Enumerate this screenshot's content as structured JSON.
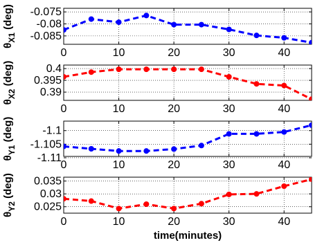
{
  "chart_data": [
    {
      "type": "line",
      "ylabel_symbol": "θ",
      "ylabel_sub": "X1",
      "ylabel_unit": "(deg)",
      "xlabel": "",
      "x": [
        0,
        5,
        10,
        15,
        20,
        25,
        30,
        35,
        40,
        45
      ],
      "values": [
        -0.0825,
        -0.078,
        -0.0793,
        -0.0765,
        -0.0803,
        -0.0803,
        -0.0823,
        -0.0848,
        -0.0858,
        -0.0878
      ],
      "ylim": [
        -0.0885,
        -0.0735
      ],
      "yticks": [
        -0.075,
        -0.08,
        -0.085
      ],
      "ytick_labels": [
        "-0.075",
        "-0.08",
        "-0.085"
      ],
      "xlim": [
        0,
        45
      ],
      "xticks": [
        0,
        10,
        20,
        30,
        40
      ],
      "xtick_labels": [
        "0",
        "10",
        "20",
        "30",
        "40"
      ],
      "color": "#0000ff",
      "grid": true
    },
    {
      "type": "line",
      "ylabel_symbol": "θ",
      "ylabel_sub": "X2",
      "ylabel_unit": "(deg)",
      "xlabel": "",
      "x": [
        0,
        5,
        10,
        15,
        20,
        25,
        30,
        35,
        40,
        45
      ],
      "values": [
        0.3965,
        0.3985,
        0.3997,
        0.3997,
        0.3997,
        0.3997,
        0.3965,
        0.3935,
        0.3928,
        0.387
      ],
      "ylim": [
        0.3865,
        0.4015
      ],
      "yticks": [
        0.39,
        0.395,
        0.4
      ],
      "ytick_labels": [
        "0.39",
        "0.395",
        "0.4"
      ],
      "xlim": [
        0,
        45
      ],
      "xticks": [
        0,
        10,
        20,
        30,
        40
      ],
      "xtick_labels": [
        "0",
        "10",
        "20",
        "30",
        "40"
      ],
      "color": "#ff0000",
      "grid": true
    },
    {
      "type": "line",
      "ylabel_symbol": "θ",
      "ylabel_sub": "Y1",
      "ylabel_unit": "(deg)",
      "xlabel": "",
      "x": [
        0,
        5,
        10,
        15,
        20,
        25,
        30,
        35,
        40,
        45
      ],
      "values": [
        -1.1058,
        -1.1067,
        -1.1075,
        -1.1075,
        -1.1068,
        -1.1055,
        -1.1012,
        -1.1012,
        -1.1005,
        -1.098
      ],
      "ylim": [
        -1.1095,
        -1.0965
      ],
      "yticks": [
        -1.1,
        -1.105,
        -1.11
      ],
      "ytick_labels": [
        "-1.1",
        "-1.105",
        "-1.11"
      ],
      "xlim": [
        0,
        45
      ],
      "xticks": [
        0,
        10,
        20,
        30,
        40
      ],
      "xtick_labels": [
        "0",
        "10",
        "20",
        "30",
        "40"
      ],
      "color": "#0000ff",
      "grid": true
    },
    {
      "type": "line",
      "ylabel_symbol": "θ",
      "ylabel_sub": "Y2",
      "ylabel_unit": "(deg)",
      "xlabel": "time(minutes)",
      "x": [
        0,
        5,
        10,
        15,
        20,
        25,
        30,
        35,
        40,
        45
      ],
      "values": [
        0.0281,
        0.0272,
        0.0243,
        0.026,
        0.0243,
        0.0262,
        0.0298,
        0.03,
        0.033,
        0.0357
      ],
      "ylim": [
        0.0225,
        0.0365
      ],
      "yticks": [
        0.025,
        0.03,
        0.035
      ],
      "ytick_labels": [
        "0.025",
        "0.03",
        "0.035"
      ],
      "xlim": [
        0,
        45
      ],
      "xticks": [
        0,
        10,
        20,
        30,
        40
      ],
      "xtick_labels": [
        "0",
        "10",
        "20",
        "30",
        "40"
      ],
      "color": "#ff0000",
      "grid": true
    }
  ]
}
